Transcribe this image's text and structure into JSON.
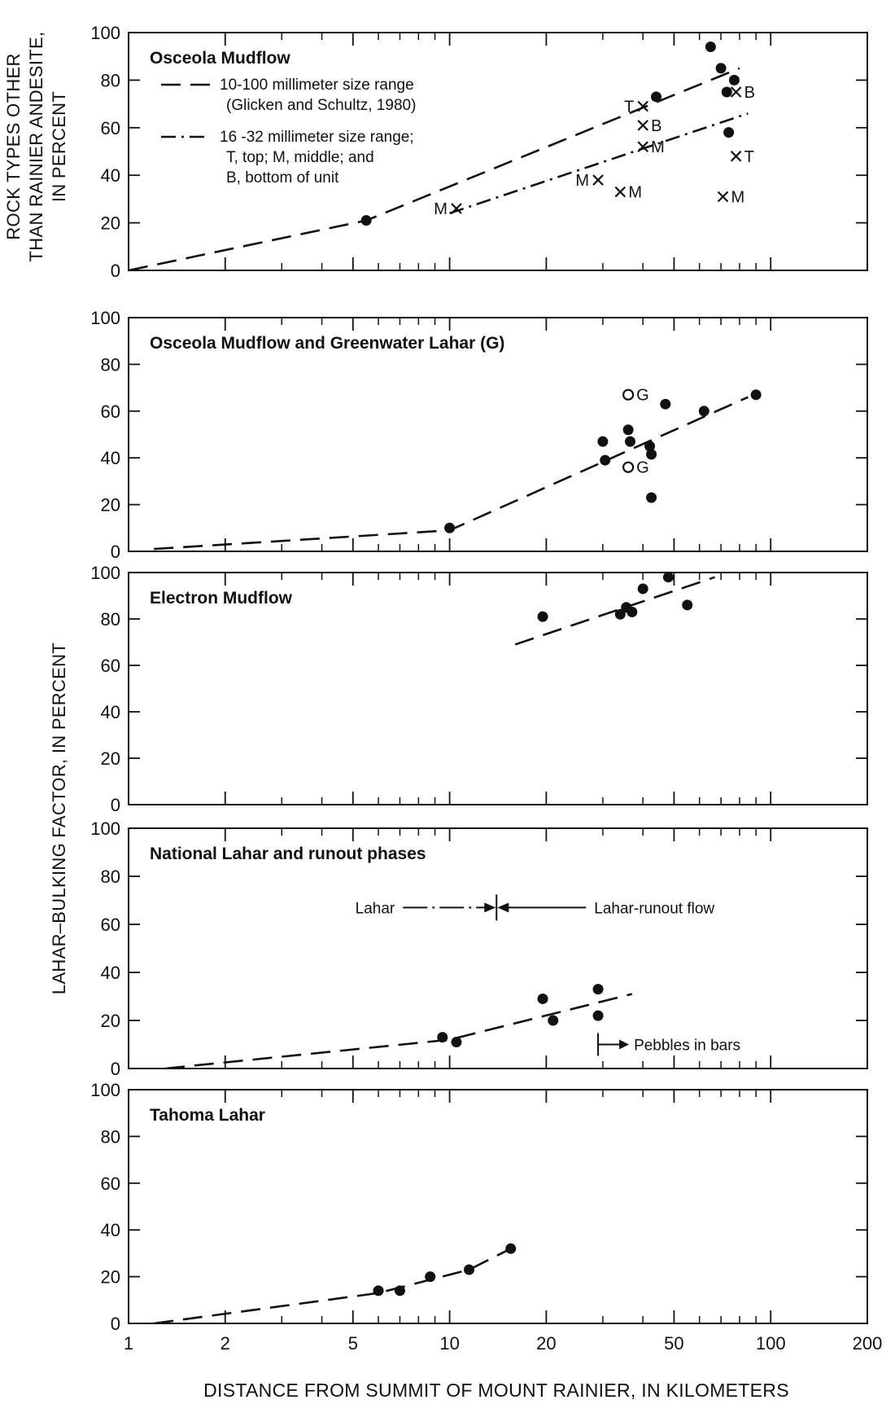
{
  "figure": {
    "ylabel_top_lines": [
      "ROCK TYPES OTHER",
      "THAN RAINIER ANDESITE,",
      "IN PERCENT"
    ],
    "ylabel_bottom": "LAHAR–BULKING FACTOR, IN PERCENT",
    "xlabel": "DISTANCE FROM SUMMIT OF MOUNT RAINIER, IN KILOMETERS"
  },
  "chart_data": [
    {
      "type": "scatter",
      "title": "Osceola Mudflow",
      "x_scale": "log",
      "xlim": [
        1,
        200
      ],
      "ylim": [
        0,
        100
      ],
      "x_ticks": [
        1,
        2,
        5,
        10,
        20,
        50,
        100,
        200
      ],
      "y_ticks": [
        0,
        20,
        40,
        60,
        80,
        100
      ],
      "legend": [
        {
          "style": "dashed",
          "lines": [
            "10-100 millimeter size range",
            "(Glicken and Schultz, 1980)"
          ]
        },
        {
          "style": "dash-dot",
          "lines": [
            "16 -32 millimeter size range;",
            "T, top;  M, middle;  and",
            "B, bottom of unit"
          ]
        }
      ],
      "series": [
        {
          "name": "10-100 millimeter size range",
          "marker": "filled-circle",
          "points": [
            [
              5.5,
              21
            ],
            [
              44,
              73
            ],
            [
              65,
              94
            ],
            [
              70,
              85
            ],
            [
              73,
              75
            ],
            [
              74,
              58
            ],
            [
              77,
              80
            ]
          ]
        },
        {
          "name": "16 -32 millimeter size range",
          "marker": "cross",
          "points": [
            {
              "x": 10.5,
              "y": 26,
              "label": "M"
            },
            {
              "x": 29,
              "y": 38,
              "label": "M"
            },
            {
              "x": 34,
              "y": 33,
              "label": "M"
            },
            {
              "x": 40,
              "y": 69,
              "label": "T"
            },
            {
              "x": 40,
              "y": 61,
              "label": "B"
            },
            {
              "x": 40,
              "y": 52,
              "label": "M"
            },
            {
              "x": 71,
              "y": 31,
              "label": "M"
            },
            {
              "x": 78,
              "y": 75,
              "label": "B"
            },
            {
              "x": 78,
              "y": 48,
              "label": "T"
            }
          ]
        }
      ],
      "trend_lines": [
        {
          "style": "dashed",
          "points": [
            [
              1,
              0
            ],
            [
              5.5,
              21
            ],
            [
              80,
              85
            ]
          ]
        },
        {
          "style": "dash-dot",
          "points": [
            [
              10,
              24
            ],
            [
              85,
              66
            ]
          ]
        }
      ]
    },
    {
      "type": "scatter",
      "title": "Osceola Mudflow and Greenwater Lahar (G)",
      "x_scale": "log",
      "xlim": [
        1,
        200
      ],
      "ylim": [
        0,
        100
      ],
      "x_ticks": [
        1,
        2,
        5,
        10,
        20,
        50,
        100,
        200
      ],
      "y_ticks": [
        0,
        20,
        40,
        60,
        80,
        100
      ],
      "series": [
        {
          "name": "Osceola Mudflow",
          "marker": "filled-circle",
          "points": [
            [
              10,
              10
            ],
            [
              30,
              47
            ],
            [
              30.5,
              39
            ],
            [
              36,
              52
            ],
            [
              36.5,
              47
            ],
            [
              42,
              45
            ],
            [
              42.5,
              41.5
            ],
            [
              42.5,
              23
            ],
            [
              47,
              63
            ],
            [
              62,
              60
            ],
            [
              90,
              67
            ]
          ]
        },
        {
          "name": "Greenwater Lahar (G)",
          "marker": "open-circle",
          "points": [
            {
              "x": 36,
              "y": 67,
              "label": "G"
            },
            {
              "x": 36,
              "y": 36,
              "label": "G"
            }
          ]
        }
      ],
      "trend_lines": [
        {
          "style": "dashed",
          "points": [
            [
              1.2,
              1
            ],
            [
              10,
              9
            ],
            [
              85,
              66
            ]
          ]
        }
      ]
    },
    {
      "type": "scatter",
      "title": "Electron Mudflow",
      "x_scale": "log",
      "xlim": [
        1,
        200
      ],
      "ylim": [
        0,
        100
      ],
      "x_ticks": [
        1,
        2,
        5,
        10,
        20,
        50,
        100,
        200
      ],
      "y_ticks": [
        0,
        20,
        40,
        60,
        80,
        100
      ],
      "series": [
        {
          "name": "Electron Mudflow",
          "marker": "filled-circle",
          "points": [
            [
              19.5,
              81
            ],
            [
              34,
              82
            ],
            [
              35.5,
              85
            ],
            [
              37,
              83
            ],
            [
              40,
              93
            ],
            [
              48,
              98
            ],
            [
              55,
              86
            ]
          ]
        }
      ],
      "trend_lines": [
        {
          "style": "dashed",
          "points": [
            [
              16,
              69
            ],
            [
              67,
              98
            ]
          ]
        }
      ]
    },
    {
      "type": "scatter",
      "title": "National Lahar and runout phases",
      "x_scale": "log",
      "xlim": [
        1,
        200
      ],
      "ylim": [
        0,
        100
      ],
      "x_ticks": [
        1,
        2,
        5,
        10,
        20,
        50,
        100,
        200
      ],
      "y_ticks": [
        0,
        20,
        40,
        60,
        80,
        100
      ],
      "annotations": {
        "lahar": "Lahar",
        "runout": "Lahar-runout flow",
        "boundary_x": 14,
        "pebbles": "Pebbles in bars",
        "pebbles_x": 29
      },
      "series": [
        {
          "name": "National Lahar and runout phases",
          "marker": "filled-circle",
          "points": [
            [
              9.5,
              13
            ],
            [
              10.5,
              11
            ],
            [
              19.5,
              29
            ],
            [
              21,
              20
            ],
            [
              29,
              33
            ],
            [
              29,
              22
            ]
          ]
        }
      ],
      "trend_lines": [
        {
          "style": "dashed",
          "points": [
            [
              1.3,
              0
            ],
            [
              10,
              12
            ],
            [
              37,
              31
            ]
          ]
        }
      ]
    },
    {
      "type": "scatter",
      "title": "Tahoma Lahar",
      "x_scale": "log",
      "xlim": [
        1,
        200
      ],
      "ylim": [
        0,
        100
      ],
      "x_ticks": [
        1,
        2,
        5,
        10,
        20,
        50,
        100,
        200
      ],
      "y_ticks": [
        0,
        20,
        40,
        60,
        80,
        100
      ],
      "series": [
        {
          "name": "Tahoma Lahar",
          "marker": "filled-circle",
          "points": [
            [
              6,
              14
            ],
            [
              7,
              14
            ],
            [
              8.7,
              20
            ],
            [
              11.5,
              23
            ],
            [
              15.5,
              32
            ]
          ]
        }
      ],
      "trend_lines": [
        {
          "style": "dashed",
          "points": [
            [
              1.2,
              0
            ],
            [
              6,
              13
            ],
            [
              11.5,
              23
            ],
            [
              15.5,
              32
            ]
          ]
        }
      ]
    }
  ]
}
